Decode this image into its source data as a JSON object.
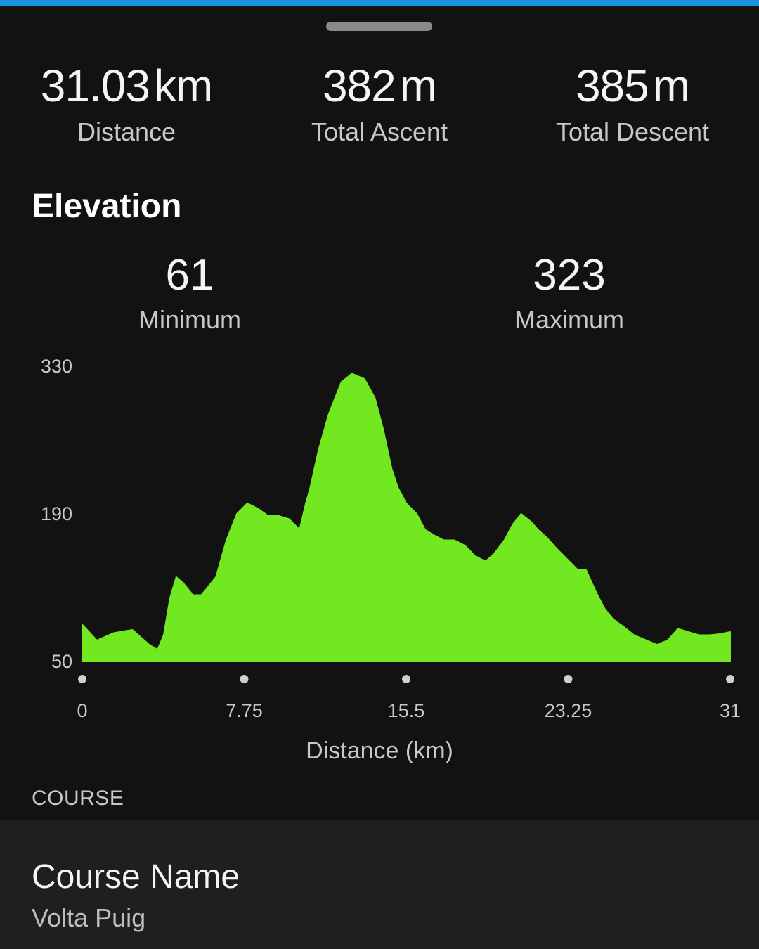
{
  "summary": {
    "distance": {
      "value": "31.03",
      "unit": "km",
      "label": "Distance"
    },
    "ascent": {
      "value": "382",
      "unit": "m",
      "label": "Total Ascent"
    },
    "descent": {
      "value": "385",
      "unit": "m",
      "label": "Total Descent"
    }
  },
  "elevation": {
    "title": "Elevation",
    "minimum": {
      "value": "61",
      "label": "Minimum"
    },
    "maximum": {
      "value": "323",
      "label": "Maximum"
    }
  },
  "colors": {
    "accent_bar": "#1a93e0",
    "area_fill": "#72e821",
    "background": "#121212",
    "panel": "#1f1f1f"
  },
  "chart_data": {
    "type": "area",
    "title": "",
    "xlabel": "Distance (km)",
    "ylabel": "",
    "xlim": [
      0,
      31
    ],
    "ylim": [
      50,
      330
    ],
    "x_ticks": [
      "0",
      "7.75",
      "15.5",
      "23.25",
      "31"
    ],
    "y_ticks": [
      "330",
      "190",
      "50"
    ],
    "legend": "none",
    "grid": false,
    "series": [
      {
        "x": [
          0,
          0.7,
          1.5,
          2.4,
          3.2,
          3.6,
          3.9,
          4.2,
          4.5,
          4.8,
          5.3,
          5.7,
          6.4,
          6.9,
          7.4,
          7.9,
          8.4,
          8.9,
          9.4,
          9.9,
          10.4,
          10.7,
          10.9,
          11.3,
          11.8,
          12.4,
          12.9,
          13.5,
          14.0,
          14.4,
          14.8,
          15.1,
          15.5,
          16.0,
          16.4,
          16.8,
          17.3,
          17.8,
          18.3,
          18.8,
          19.3,
          19.7,
          20.2,
          20.6,
          21.0,
          21.5,
          21.8,
          22.2,
          22.7,
          23.2,
          23.7,
          24.1,
          24.6,
          25.0,
          25.4,
          25.9,
          26.4,
          27.0,
          27.5,
          28.0,
          28.5,
          29.0,
          29.5,
          30.0,
          30.5,
          31.0
        ],
        "y": [
          85,
          70,
          77,
          80,
          66,
          61,
          75,
          110,
          130,
          125,
          113,
          113,
          130,
          165,
          190,
          200,
          195,
          188,
          188,
          185,
          175,
          200,
          214,
          250,
          285,
          315,
          323,
          318,
          300,
          270,
          233,
          215,
          200,
          190,
          175,
          170,
          165,
          165,
          160,
          150,
          145,
          152,
          165,
          180,
          190,
          182,
          175,
          168,
          157,
          147,
          137,
          137,
          115,
          100,
          90,
          83,
          75,
          70,
          66,
          70,
          81,
          78,
          75,
          75,
          76,
          78
        ]
      }
    ]
  },
  "course": {
    "section_label": "COURSE",
    "name_label": "Course Name",
    "name_value": "Volta Puig"
  }
}
